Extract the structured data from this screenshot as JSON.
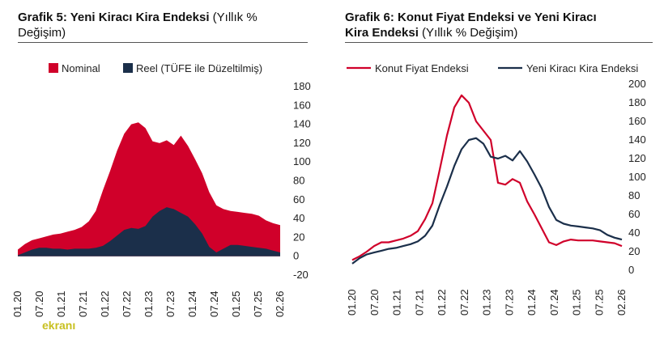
{
  "watermark": "ekranı",
  "charts": {
    "left": {
      "title_bold": "Grafik 5: Yeni Kiracı Kira Endeksi",
      "title_rest": "(Yıllık %",
      "title_line2": "Değişim)"
    },
    "right": {
      "title_bold_line1": "Grafik 6: Konut Fiyat Endeksi ve Yeni Kiracı",
      "title_bold_line2": "Kira Endeksi",
      "title_rest": "(Yıllık % Değişim)"
    }
  },
  "chart_data": [
    {
      "type": "area",
      "title": "Grafik 5: Yeni Kiracı Kira Endeksi (Yıllık % Değişim)",
      "x_ticks": [
        "01.20",
        "07.20",
        "01.21",
        "07.21",
        "01.22",
        "07.22",
        "01.23",
        "07.23",
        "01.24",
        "07.24",
        "01.25",
        "07.25",
        "02.26"
      ],
      "y_ticks": [
        "180",
        "160",
        "140",
        "120",
        "100",
        "80",
        "60",
        "40",
        "20",
        "0",
        "-20"
      ],
      "ylim": [
        -20,
        180
      ],
      "legend_position": "top",
      "series": [
        {
          "name": "Nominal",
          "color": "#d0002a",
          "values": [
            7,
            13,
            17,
            19,
            21,
            23,
            24,
            26,
            28,
            31,
            37,
            48,
            70,
            90,
            112,
            130,
            140,
            142,
            136,
            122,
            120,
            123,
            118,
            128,
            117,
            103,
            88,
            68,
            54,
            50,
            48,
            47,
            46,
            45,
            43,
            38,
            35,
            33
          ]
        },
        {
          "name": "Reel (TÜFE ile Düzeltilmiş)",
          "color": "#1b2f4a",
          "values": [
            1,
            4,
            7,
            9,
            9,
            8,
            8,
            7,
            8,
            8,
            8,
            9,
            11,
            16,
            22,
            28,
            30,
            29,
            32,
            42,
            48,
            52,
            50,
            46,
            42,
            34,
            24,
            10,
            4,
            8,
            12,
            12,
            11,
            10,
            9,
            8,
            6,
            4
          ]
        }
      ]
    },
    {
      "type": "line",
      "title": "Grafik 6: Konut Fiyat Endeksi ve Yeni Kiracı Kira Endeksi (Yıllık % Değişim)",
      "x_ticks": [
        "01.20",
        "07.20",
        "01.21",
        "07.21",
        "01.22",
        "07.22",
        "01.23",
        "07.23",
        "01.24",
        "07.24",
        "01.25",
        "07.25",
        "02.26"
      ],
      "y_ticks": [
        "200",
        "180",
        "160",
        "140",
        "120",
        "100",
        "80",
        "60",
        "40",
        "20",
        "0"
      ],
      "ylim": [
        0,
        200
      ],
      "legend_position": "top",
      "series": [
        {
          "name": "Konut Fiyat Endeksi",
          "color": "#d0002a",
          "values": [
            11,
            15,
            20,
            26,
            30,
            30,
            32,
            34,
            37,
            42,
            55,
            72,
            108,
            145,
            175,
            188,
            180,
            160,
            150,
            140,
            94,
            92,
            98,
            94,
            74,
            60,
            45,
            30,
            27,
            31,
            33,
            32,
            32,
            32,
            31,
            30,
            29,
            26
          ]
        },
        {
          "name": "Yeni Kiracı Kira Endeksi",
          "color": "#1b2f4a",
          "values": [
            7,
            13,
            17,
            19,
            21,
            23,
            24,
            26,
            28,
            31,
            37,
            48,
            70,
            90,
            112,
            130,
            140,
            142,
            136,
            122,
            120,
            123,
            118,
            128,
            117,
            103,
            88,
            68,
            54,
            50,
            48,
            47,
            46,
            45,
            43,
            38,
            35,
            33
          ]
        }
      ]
    }
  ]
}
